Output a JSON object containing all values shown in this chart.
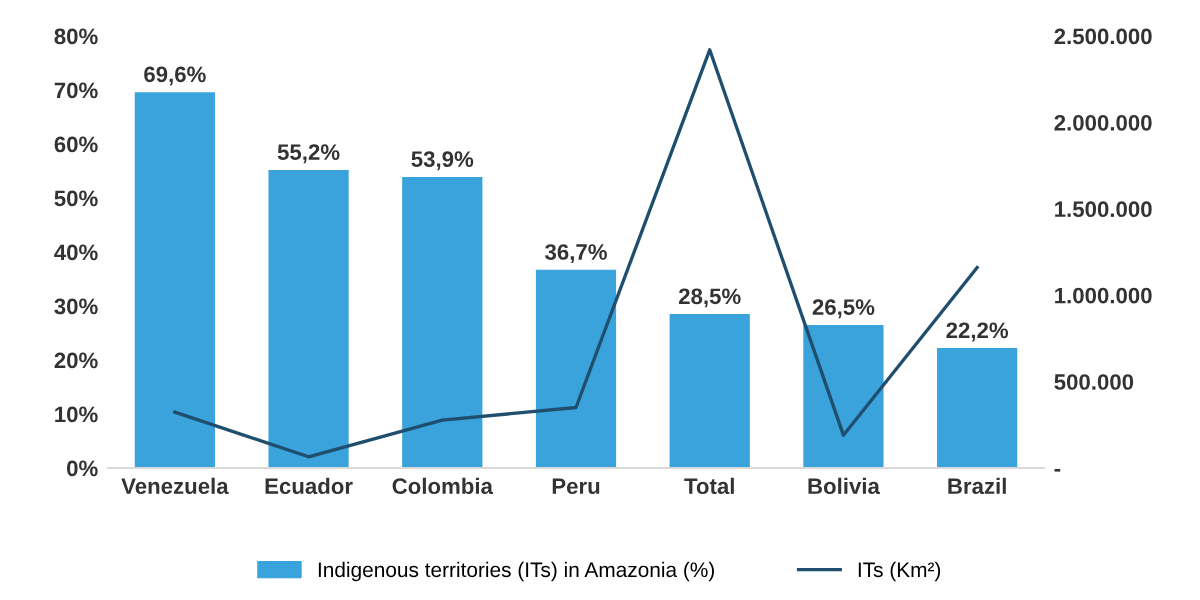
{
  "chart_data": {
    "type": "bar",
    "categories": [
      "Venezuela",
      "Ecuador",
      "Colombia",
      "Peru",
      "Total",
      "Bolivia",
      "Brazil"
    ],
    "series": [
      {
        "name": "Indigenous territories (ITs) in Amazonia (%)",
        "color": "#3aa3dc",
        "values": [
          69.6,
          55.2,
          53.9,
          36.7,
          28.5,
          26.5,
          22.2
        ],
        "value_labels": [
          "69,6%",
          "55,2%",
          "53,9%",
          "36,7%",
          "28,5%",
          "26,5%",
          "22,2%"
        ]
      },
      {
        "name": "ITs (Km²)",
        "type": "line",
        "axis": "y2",
        "color": "#1f4e6e",
        "values": [
          323000,
          65000,
          277000,
          350000,
          2420000,
          190000,
          1160000
        ]
      }
    ],
    "ylim": [
      0,
      80
    ],
    "yticks": [
      {
        "value": 0,
        "label": "0%"
      },
      {
        "value": 10,
        "label": "10%"
      },
      {
        "value": 20,
        "label": "20%"
      },
      {
        "value": 30,
        "label": "30%"
      },
      {
        "value": 40,
        "label": "40%"
      },
      {
        "value": 50,
        "label": "50%"
      },
      {
        "value": 60,
        "label": "60%"
      },
      {
        "value": 70,
        "label": "70%"
      },
      {
        "value": 80,
        "label": "80%"
      }
    ],
    "y2lim": [
      0,
      2500000
    ],
    "y2ticks": [
      {
        "value": 0,
        "label": "-"
      },
      {
        "value": 500000,
        "label": "500.000"
      },
      {
        "value": 1000000,
        "label": "1.000.000"
      },
      {
        "value": 1500000,
        "label": "1.500.000"
      },
      {
        "value": 2000000,
        "label": "2.000.000"
      },
      {
        "value": 2500000,
        "label": "2.500.000"
      }
    ],
    "legend": "bottom"
  }
}
